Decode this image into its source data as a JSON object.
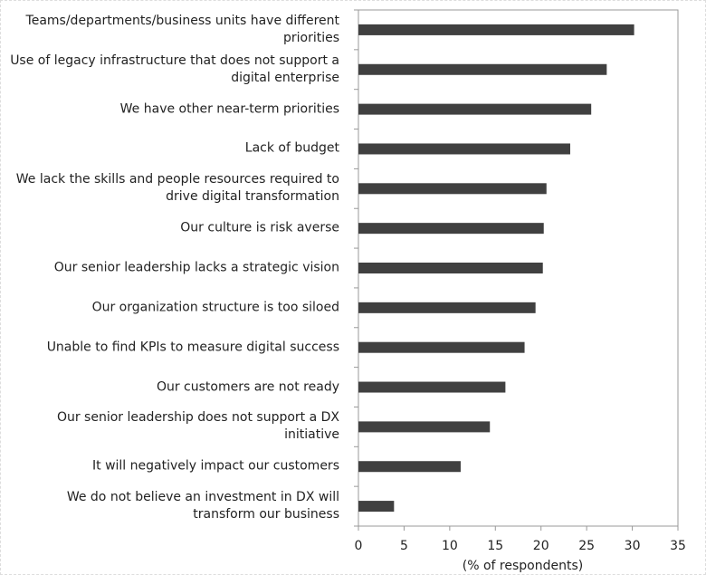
{
  "chart_data": {
    "type": "bar",
    "orientation": "horizontal",
    "categories": [
      "Teams/departments/business units have different priorities",
      "Use of legacy infrastructure that does not support a digital enterprise",
      "We have other near-term priorities",
      "Lack of budget",
      "We lack the skills and people resources required to drive digital transformation",
      "Our culture is risk averse",
      "Our senior leadership lacks a strategic vision",
      "Our organization structure is too siloed",
      "Unable to find KPIs to measure digital success",
      "Our customers are not ready",
      "Our senior leadership does not support a DX initiative",
      "It will negatively impact our customers",
      "We do not believe an investment in DX will transform our business"
    ],
    "values": [
      30.2,
      27.2,
      25.5,
      23.2,
      20.6,
      20.3,
      20.2,
      19.4,
      18.2,
      16.1,
      14.4,
      11.2,
      3.9
    ],
    "color": "#404040",
    "x_label": "(% of respondents)",
    "xlim": [
      0,
      35
    ],
    "xticks": [
      0,
      5,
      10,
      15,
      20,
      25,
      30,
      35
    ]
  }
}
